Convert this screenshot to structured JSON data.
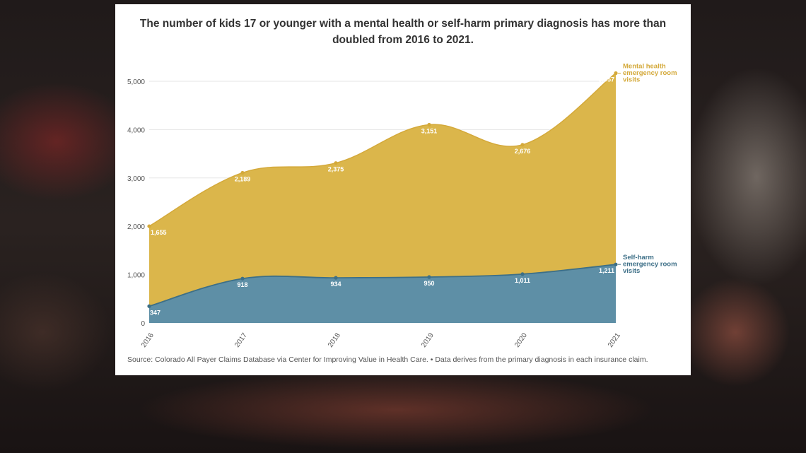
{
  "source": "Source: Colorado All Payer Claims Database via Center for Improving Value in Health Care. • Data derives from the primary diagnosis in each insurance claim.",
  "colors": {
    "mental": "#dbb64b",
    "mental_line": "#d4a93a",
    "selfharm": "#5e8fa6",
    "selfharm_line": "#3d6f87",
    "grid": "#e6e6e6"
  },
  "chart_data": {
    "type": "area",
    "title": "The number of kids 17 or younger with a mental health or self-harm primary diagnosis has more than doubled from 2016 to 2021.",
    "stacked": true,
    "x": [
      "2016",
      "2017",
      "2018",
      "2019",
      "2020",
      "2021"
    ],
    "series": [
      {
        "name": "Self-harm emergency room visits",
        "values": [
          347,
          918,
          934,
          950,
          1011,
          1211
        ],
        "labels": [
          "347",
          "918",
          "934",
          "950",
          "1,011",
          "1,211"
        ]
      },
      {
        "name": "Mental health emergency room visits",
        "values": [
          1655,
          2189,
          2375,
          3151,
          2676,
          3957
        ],
        "labels": [
          "1,655",
          "2,189",
          "2,375",
          "3,151",
          "2,676",
          "3,957"
        ]
      }
    ],
    "ylim": [
      0,
      5500
    ],
    "yticks": [
      0,
      1000,
      2000,
      3000,
      4000,
      5000
    ],
    "ytick_labels": [
      "0",
      "1,000",
      "2,000",
      "3,000",
      "4,000",
      "5,000"
    ],
    "xlabel": "",
    "ylabel": "",
    "grid": true,
    "legend": "direct labels at right end of series"
  }
}
